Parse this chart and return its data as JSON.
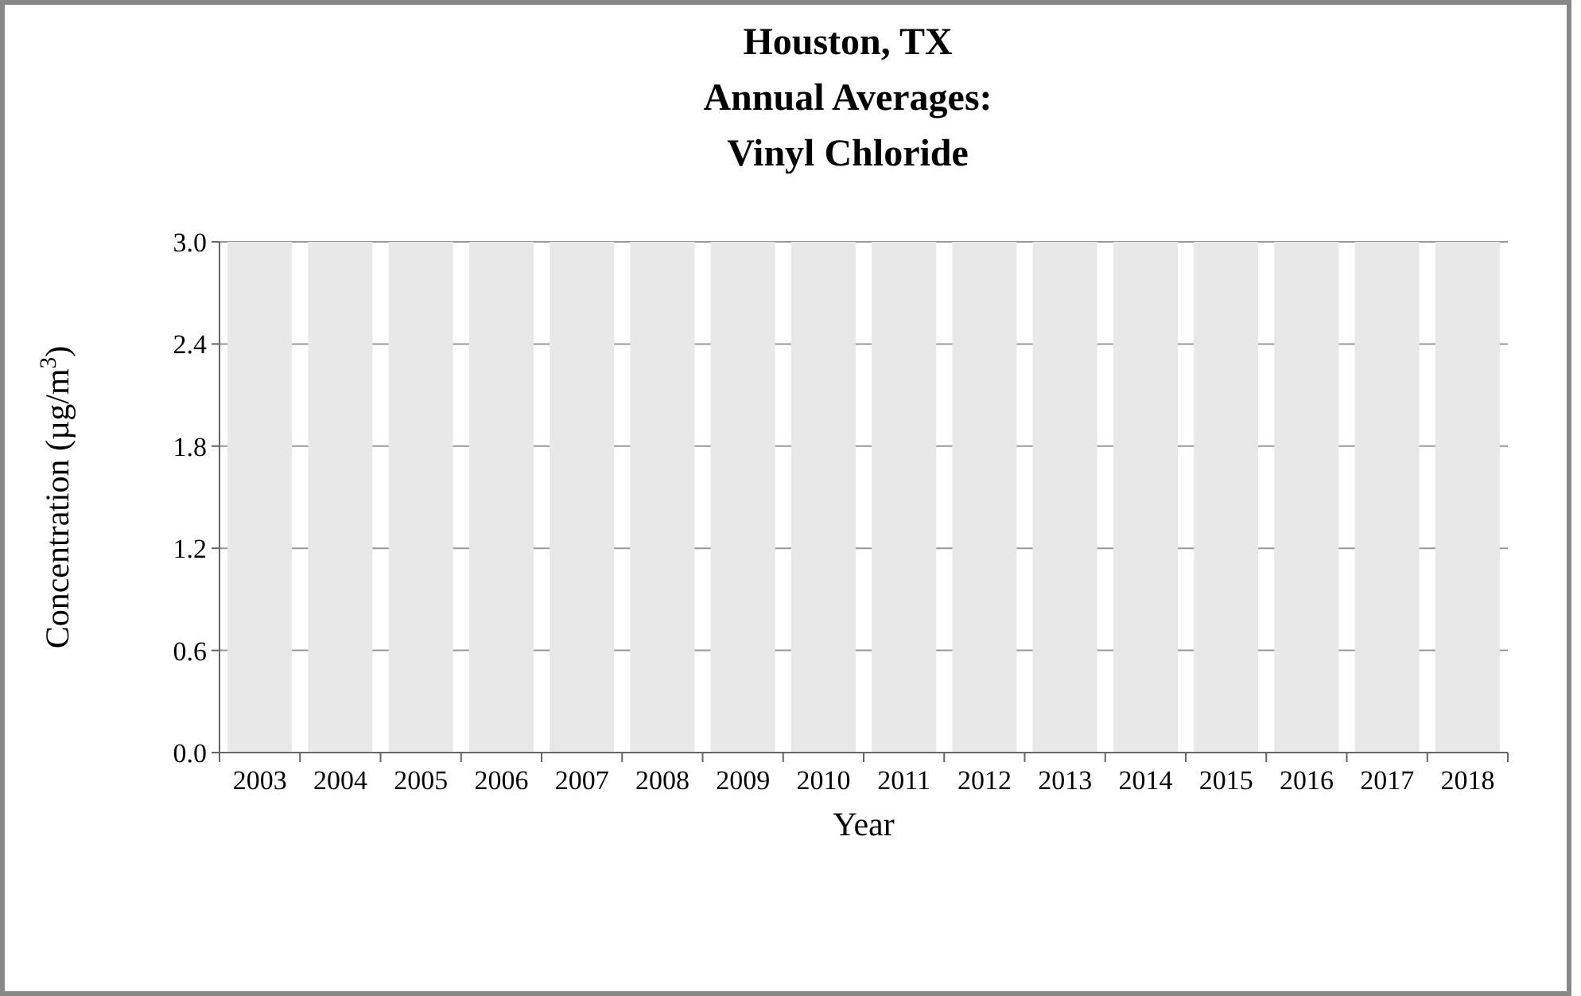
{
  "chart_data": {
    "type": "bar",
    "title": "Houston, TX\nAnnual Averages:\nVinyl Chloride",
    "xlabel": "Year",
    "ylabel": "Concentration (µg/m$^{3}$)",
    "categories": [
      "2003",
      "2004",
      "2005",
      "2006",
      "2007",
      "2008",
      "2009",
      "2010",
      "2011",
      "2012",
      "2013",
      "2014",
      "2015",
      "2016",
      "2017",
      "2018"
    ],
    "values": [
      3.0,
      3.0,
      3.0,
      3.0,
      3.0,
      3.0,
      3.0,
      3.0,
      3.0,
      3.0,
      3.0,
      3.0,
      3.0,
      3.0,
      3.0,
      3.0
    ],
    "color": "#e8e8e8",
    "ylim": [
      0,
      3.0
    ],
    "yticks": [
      {
        "value": 0,
        "label": "0.0"
      },
      {
        "value": 0.6,
        "label": "0.6"
      },
      {
        "value": 1.2,
        "label": "1.2"
      },
      {
        "value": 1.8,
        "label": "1.8"
      },
      {
        "value": 2.4,
        "label": "2.4"
      },
      {
        "value": 3.0,
        "label": "3.0"
      }
    ],
    "grid": "y"
  }
}
